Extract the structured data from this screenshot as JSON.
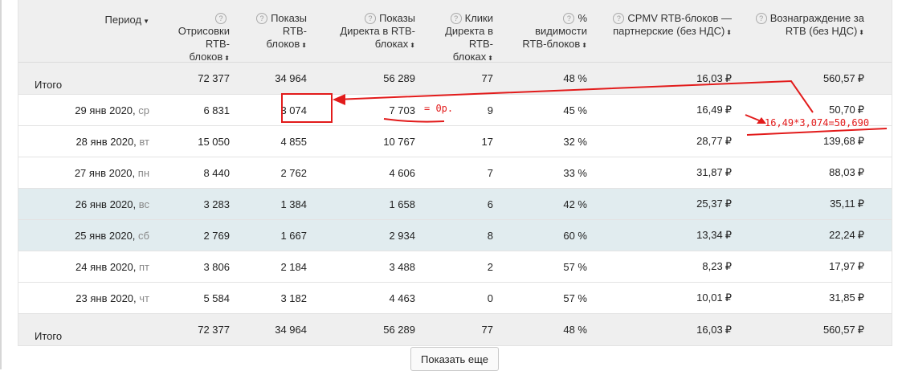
{
  "columns": [
    {
      "label": "Период",
      "help": false
    },
    {
      "label": "Отрисовки RTB-блоков",
      "help": true
    },
    {
      "label": "Показы RTB-блоков",
      "help": true
    },
    {
      "label": "Показы Директа в RTB-блоках",
      "help": true
    },
    {
      "label": "Клики Директа в RTB-блоках",
      "help": true
    },
    {
      "label": "% видимости RTB-блоков",
      "help": true
    },
    {
      "label": "CPMV RTB-блоков — партнерские (без НДС)",
      "help": true
    },
    {
      "label": "Вознаграждение за RTB (без НДС)",
      "help": true
    }
  ],
  "currency": "₽",
  "total_top": {
    "label": "Итого",
    "values": [
      "72 377",
      "34 964",
      "56 289",
      "77",
      "48 %",
      "16,03",
      "560,57"
    ]
  },
  "rows": [
    {
      "date": "29 янв 2020,",
      "dow": "ср",
      "values": [
        "6 831",
        "3 074",
        "7 703",
        "9",
        "45 %",
        "16,49",
        "50,70"
      ],
      "weekend": false
    },
    {
      "date": "28 янв 2020,",
      "dow": "вт",
      "values": [
        "15 050",
        "4 855",
        "10 767",
        "17",
        "32 %",
        "28,77",
        "139,68"
      ],
      "weekend": false
    },
    {
      "date": "27 янв 2020,",
      "dow": "пн",
      "values": [
        "8 440",
        "2 762",
        "4 606",
        "7",
        "33 %",
        "31,87",
        "88,03"
      ],
      "weekend": false
    },
    {
      "date": "26 янв 2020,",
      "dow": "вс",
      "values": [
        "3 283",
        "1 384",
        "1 658",
        "6",
        "42 %",
        "25,37",
        "35,11"
      ],
      "weekend": true
    },
    {
      "date": "25 янв 2020,",
      "dow": "сб",
      "values": [
        "2 769",
        "1 667",
        "2 934",
        "8",
        "60 %",
        "13,34",
        "22,24"
      ],
      "weekend": true
    },
    {
      "date": "24 янв 2020,",
      "dow": "пт",
      "values": [
        "3 806",
        "2 184",
        "3 488",
        "2",
        "57 %",
        "8,23",
        "17,97"
      ],
      "weekend": false
    },
    {
      "date": "23 янв 2020,",
      "dow": "чт",
      "values": [
        "5 584",
        "3 182",
        "4 463",
        "0",
        "57 %",
        "10,01",
        "31,85"
      ],
      "weekend": false
    }
  ],
  "total_bottom": {
    "label": "Итого",
    "values": [
      "72 377",
      "34 964",
      "56 289",
      "77",
      "48 %",
      "16,03",
      "560,57"
    ]
  },
  "show_more_label": "Показать еще",
  "annotations": {
    "zero_note": "= 0р.",
    "formula": "16,49*3,074=50,690",
    "color": "#e21b1b"
  }
}
